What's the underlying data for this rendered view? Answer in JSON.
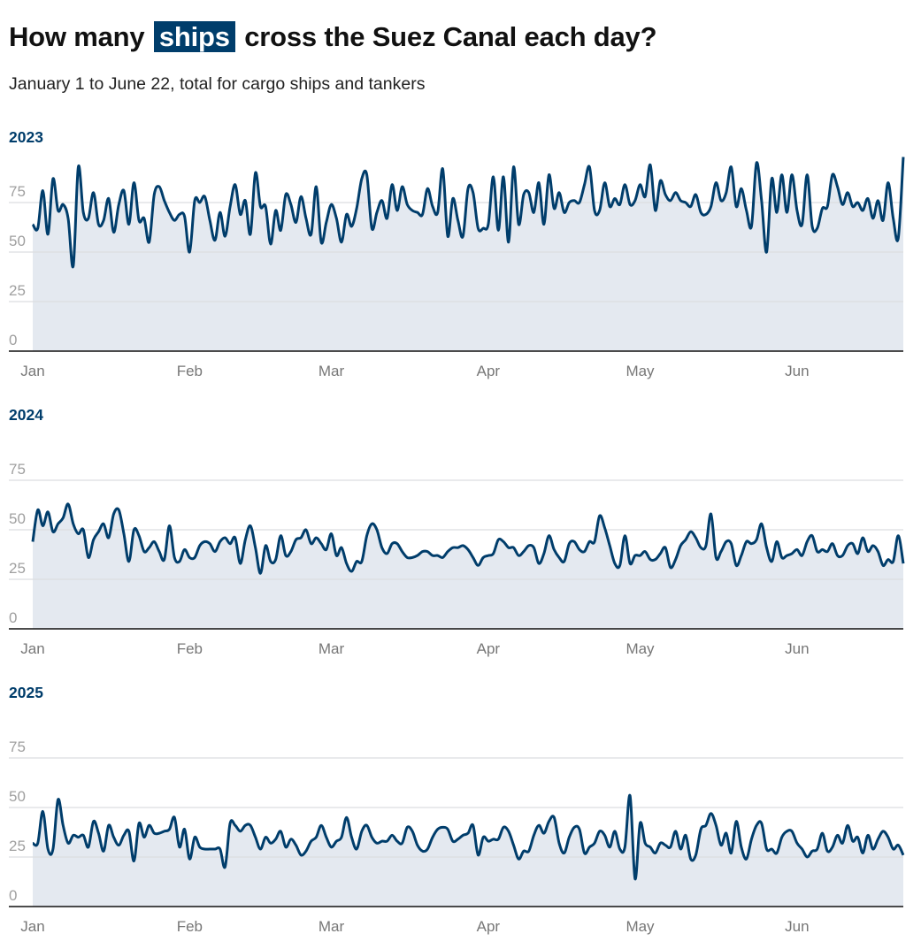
{
  "header": {
    "title_before": "How many",
    "title_highlight": "ships",
    "title_after": "cross the Suez Canal each day?",
    "subtitle": "January 1 to June 22, total for cargo ships and tankers"
  },
  "colors": {
    "line": "#003d6b",
    "fill": "#e4e9f0",
    "grid": "#dcdde0",
    "highlight": "#003d6b",
    "year": "#003d6b"
  },
  "chart_data": [
    {
      "type": "area",
      "title": "2023",
      "xlabel": "",
      "ylabel": "",
      "ylim": [
        0,
        100
      ],
      "yticks": [
        "0",
        "25",
        "50",
        "75"
      ],
      "ytick_values": [
        0,
        25,
        50,
        75
      ],
      "xticks": [
        {
          "label": "Jan",
          "day": 0
        },
        {
          "label": "Feb",
          "day": 31
        },
        {
          "label": "Mar",
          "day": 59
        },
        {
          "label": "Apr",
          "day": 90
        },
        {
          "label": "May",
          "day": 120
        },
        {
          "label": "Jun",
          "day": 151
        }
      ],
      "x_unit": "day of year from Jan 1",
      "values": [
        64,
        62,
        81,
        59,
        87,
        71,
        74,
        67,
        43,
        93,
        70,
        67,
        80,
        64,
        66,
        77,
        60,
        74,
        81,
        64,
        85,
        66,
        67,
        55,
        79,
        83,
        76,
        70,
        66,
        69,
        68,
        50,
        76,
        75,
        78,
        66,
        56,
        70,
        58,
        73,
        84,
        69,
        76,
        59,
        90,
        73,
        73,
        54,
        71,
        61,
        79,
        74,
        65,
        78,
        67,
        59,
        83,
        55,
        65,
        74,
        67,
        55,
        69,
        63,
        72,
        87,
        89,
        62,
        70,
        76,
        67,
        84,
        71,
        83,
        74,
        71,
        70,
        69,
        82,
        73,
        70,
        92,
        58,
        77,
        66,
        58,
        82,
        80,
        62,
        62,
        64,
        88,
        61,
        88,
        55,
        93,
        64,
        79,
        80,
        70,
        85,
        64,
        89,
        72,
        80,
        70,
        75,
        76,
        75,
        84,
        93,
        71,
        71,
        85,
        73,
        77,
        74,
        84,
        74,
        76,
        84,
        78,
        94,
        71,
        86,
        79,
        76,
        80,
        76,
        75,
        73,
        79,
        70,
        69,
        73,
        85,
        76,
        80,
        93,
        73,
        82,
        71,
        63,
        95,
        76,
        50,
        87,
        70,
        89,
        70,
        89,
        71,
        64,
        89,
        63,
        62,
        72,
        73,
        89,
        83,
        74,
        80,
        73,
        75,
        71,
        77,
        67,
        76,
        66,
        85,
        67,
        57,
        98
      ]
    },
    {
      "type": "area",
      "title": "2024",
      "xlabel": "",
      "ylabel": "",
      "ylim": [
        0,
        100
      ],
      "yticks": [
        "0",
        "25",
        "50",
        "75"
      ],
      "ytick_values": [
        0,
        25,
        50,
        75
      ],
      "xticks": [
        {
          "label": "Jan",
          "day": 0
        },
        {
          "label": "Feb",
          "day": 31
        },
        {
          "label": "Mar",
          "day": 59
        },
        {
          "label": "Apr",
          "day": 90
        },
        {
          "label": "May",
          "day": 120
        },
        {
          "label": "Jun",
          "day": 151
        }
      ],
      "x_unit": "day of year from Jan 1",
      "values": [
        44,
        60,
        52,
        59,
        49,
        53,
        56,
        63,
        53,
        48,
        50,
        36,
        45,
        49,
        53,
        46,
        58,
        60,
        48,
        34,
        50,
        47,
        39,
        41,
        44,
        39,
        35,
        52,
        36,
        34,
        40,
        36,
        36,
        42,
        44,
        43,
        39,
        44,
        46,
        43,
        46,
        33,
        45,
        52,
        41,
        28,
        42,
        34,
        35,
        47,
        37,
        39,
        45,
        46,
        50,
        43,
        46,
        43,
        40,
        48,
        37,
        41,
        33,
        29,
        34,
        34,
        47,
        53,
        50,
        41,
        38,
        43,
        43,
        39,
        36,
        36,
        37,
        39,
        39,
        37,
        37,
        36,
        39,
        41,
        41,
        42,
        40,
        36,
        32,
        36,
        37,
        38,
        45,
        44,
        41,
        41,
        37,
        39,
        42,
        41,
        33,
        38,
        47,
        40,
        36,
        34,
        43,
        44,
        40,
        39,
        44,
        44,
        57,
        51,
        42,
        33,
        32,
        47,
        33,
        37,
        37,
        39,
        35,
        35,
        38,
        41,
        31,
        35,
        42,
        45,
        49,
        46,
        41,
        42,
        58,
        36,
        39,
        44,
        43,
        32,
        37,
        44,
        43,
        45,
        53,
        41,
        34,
        44,
        36,
        37,
        38,
        40,
        37,
        44,
        47,
        39,
        40,
        39,
        43,
        37,
        37,
        42,
        43,
        38,
        46,
        39,
        42,
        39,
        32,
        35,
        34,
        47,
        33
      ]
    },
    {
      "type": "area",
      "title": "2025",
      "xlabel": "",
      "ylabel": "",
      "ylim": [
        0,
        100
      ],
      "yticks": [
        "0",
        "25",
        "50",
        "75"
      ],
      "ytick_values": [
        0,
        25,
        50,
        75
      ],
      "xticks": [
        {
          "label": "Jan",
          "day": 0
        },
        {
          "label": "Feb",
          "day": 31
        },
        {
          "label": "Mar",
          "day": 59
        },
        {
          "label": "Apr",
          "day": 90
        },
        {
          "label": "May",
          "day": 120
        },
        {
          "label": "Jun",
          "day": 151
        }
      ],
      "x_unit": "day of year from Jan 1",
      "values": [
        32,
        32,
        48,
        29,
        29,
        54,
        41,
        32,
        36,
        35,
        36,
        30,
        43,
        37,
        28,
        41,
        35,
        31,
        36,
        38,
        23,
        42,
        35,
        41,
        37,
        37,
        38,
        39,
        45,
        30,
        39,
        24,
        35,
        30,
        29,
        29,
        29,
        29,
        20,
        42,
        41,
        38,
        41,
        41,
        35,
        29,
        35,
        32,
        34,
        38,
        30,
        34,
        31,
        26,
        28,
        33,
        35,
        41,
        35,
        30,
        33,
        35,
        45,
        35,
        29,
        38,
        41,
        35,
        32,
        33,
        33,
        36,
        33,
        32,
        40,
        38,
        31,
        28,
        29,
        35,
        39,
        40,
        39,
        33,
        34,
        36,
        37,
        41,
        26,
        35,
        33,
        34,
        34,
        40,
        38,
        31,
        24,
        28,
        28,
        36,
        41,
        37,
        43,
        45,
        32,
        27,
        35,
        40,
        39,
        27,
        30,
        32,
        38,
        36,
        30,
        38,
        29,
        30,
        56,
        14,
        42,
        32,
        30,
        27,
        32,
        31,
        30,
        38,
        29,
        36,
        24,
        26,
        39,
        41,
        47,
        41,
        31,
        37,
        27,
        43,
        30,
        24,
        34,
        41,
        42,
        29,
        29,
        27,
        35,
        38,
        38,
        32,
        29,
        25,
        28,
        29,
        37,
        28,
        30,
        36,
        32,
        41,
        33,
        35,
        27,
        36,
        29,
        34,
        38,
        35,
        29,
        31,
        26
      ]
    }
  ]
}
